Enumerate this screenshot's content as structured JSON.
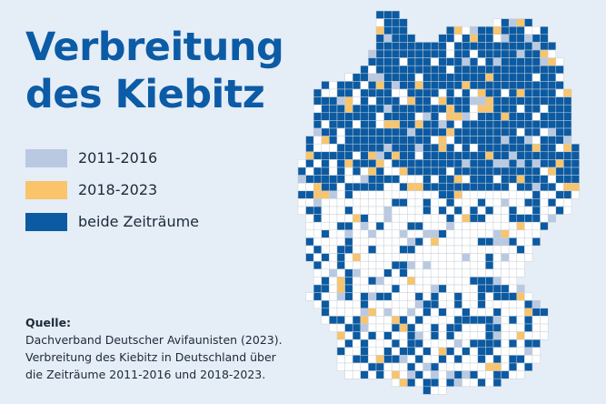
{
  "title": "Verbreitung des Kiebitz",
  "legend": [
    {
      "label": "2011-2016",
      "color": "#b9c9e2"
    },
    {
      "label": "2018-2023",
      "color": "#f9c46a"
    },
    {
      "label": "beide Zeiträume",
      "color": "#0b5aa2"
    }
  ],
  "source": {
    "heading": "Quelle:",
    "lines": [
      "Dachverband Deutscher Avifaunisten (2023).",
      "Verbreitung des Kiebitz in Deutschland über",
      "die Zeiträume 2011-2016 und 2018-2023."
    ]
  }
}
